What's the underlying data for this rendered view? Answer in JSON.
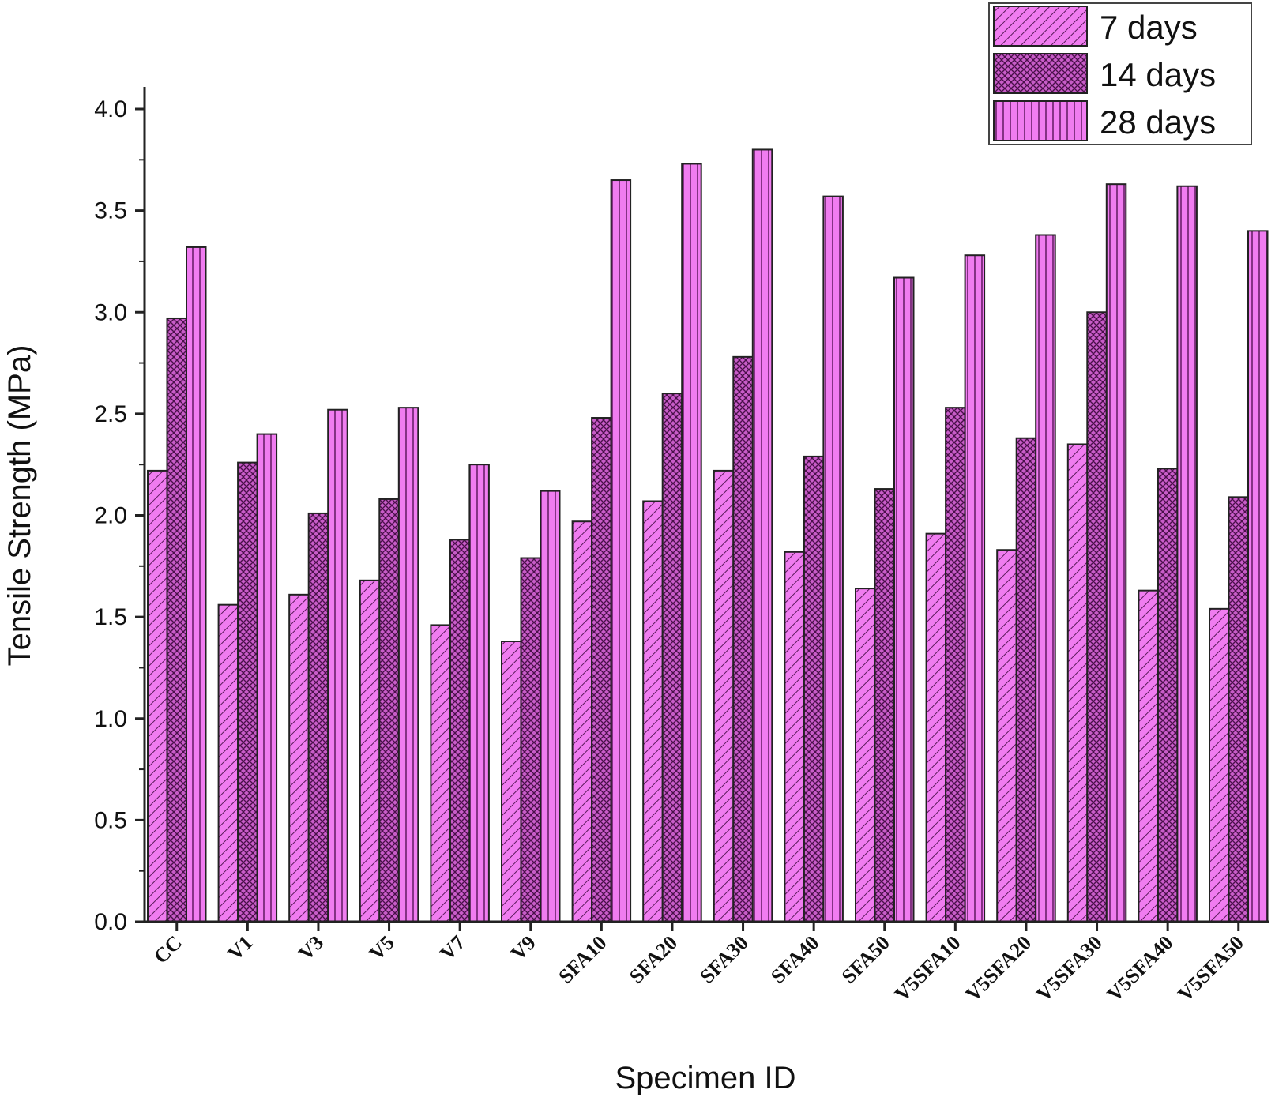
{
  "chart_data": {
    "type": "bar",
    "title": "",
    "xlabel": "Specimen ID",
    "ylabel": "Tensile Strength (MPa)",
    "ylim": [
      0,
      4.0
    ],
    "yticks": [
      "0.0",
      "0.5",
      "1.0",
      "1.5",
      "2.0",
      "2.5",
      "3.0",
      "3.5",
      "4.0"
    ],
    "categories": [
      "CC",
      "V1",
      "V3",
      "V5",
      "V7",
      "V9",
      "SFA10",
      "SFA20",
      "SFA30",
      "SFA40",
      "SFA50",
      "V5SFA10",
      "V5SFA20",
      "V5SFA30",
      "V5SFA40",
      "V5SFA50"
    ],
    "series": [
      {
        "name": "7 days",
        "pattern": "diagonal-hatch",
        "color": "#f07cf0",
        "values": [
          2.22,
          1.56,
          1.61,
          1.68,
          1.46,
          1.38,
          1.97,
          2.07,
          2.22,
          1.82,
          1.64,
          1.91,
          1.83,
          2.35,
          1.63,
          1.54
        ]
      },
      {
        "name": "14 days",
        "pattern": "crosshatch",
        "color": "#c040c0",
        "values": [
          2.97,
          2.26,
          2.01,
          2.08,
          1.88,
          1.79,
          2.48,
          2.6,
          2.78,
          2.29,
          2.13,
          2.53,
          2.38,
          3.0,
          2.23,
          2.09
        ]
      },
      {
        "name": "28 days",
        "pattern": "vertical-lines",
        "color": "#f07cf0",
        "values": [
          3.32,
          2.4,
          2.52,
          2.53,
          2.25,
          2.12,
          3.65,
          3.73,
          3.8,
          3.57,
          3.17,
          3.28,
          3.38,
          3.63,
          3.62,
          3.4
        ]
      }
    ],
    "grid": false,
    "legend_position": "top-right"
  }
}
